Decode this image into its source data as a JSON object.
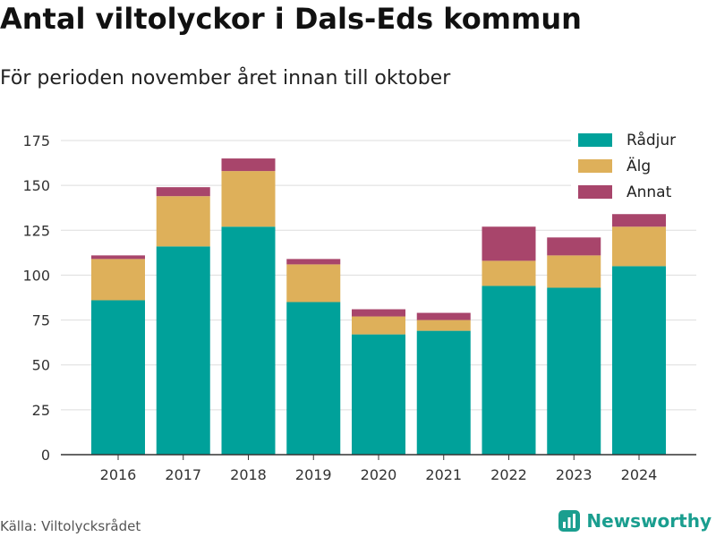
{
  "header": {
    "title": "Antal viltolyckor i Dals-Eds kommun",
    "subtitle": "För perioden november året innan till oktober"
  },
  "footer": {
    "source": "Källa: Viltolycksrådet",
    "brand": "Newsworthy",
    "brand_icon": "bar-chart-logo-icon"
  },
  "colors": {
    "radjur": "#00a19a",
    "alg": "#deb05a",
    "annat": "#a8456b",
    "grid": "#dddddd",
    "axis": "#333333",
    "brand": "#1a9e8f"
  },
  "chart_data": {
    "type": "bar",
    "stacked": true,
    "title": "Antal viltolyckor i Dals-Eds kommun",
    "subtitle": "För perioden november året innan till oktober",
    "xlabel": "",
    "ylabel": "",
    "categories": [
      "2016",
      "2017",
      "2018",
      "2019",
      "2020",
      "2021",
      "2022",
      "2023",
      "2024"
    ],
    "series": [
      {
        "name": "Rådjur",
        "color": "#00a19a",
        "values": [
          86,
          116,
          127,
          85,
          67,
          69,
          94,
          93,
          105
        ]
      },
      {
        "name": "Älg",
        "color": "#deb05a",
        "values": [
          23,
          28,
          31,
          21,
          10,
          6,
          14,
          18,
          22
        ]
      },
      {
        "name": "Annat",
        "color": "#a8456b",
        "values": [
          2,
          5,
          7,
          3,
          4,
          4,
          19,
          10,
          7
        ]
      }
    ],
    "ylim": [
      0,
      175
    ],
    "yticks": [
      0,
      25,
      50,
      75,
      100,
      125,
      150,
      175
    ],
    "grid": true,
    "legend_position": "top-right"
  }
}
